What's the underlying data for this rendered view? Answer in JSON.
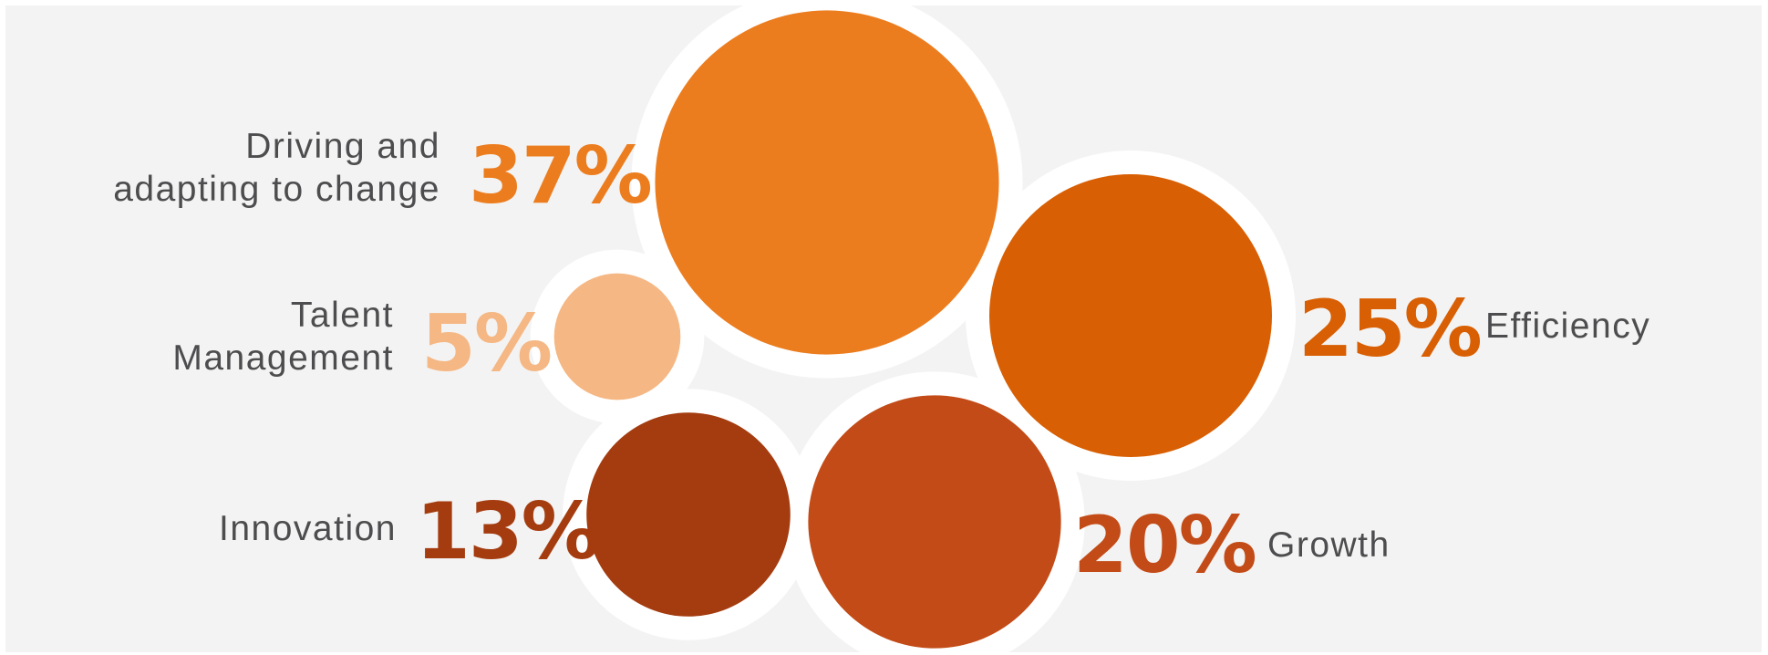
{
  "chart_data": {
    "type": "bubble",
    "unit": "%",
    "series": [
      {
        "category": "Driving and\nadapting to change",
        "value": 37,
        "label": "37%",
        "color": "#ec7d1f"
      },
      {
        "category": "Efficiency",
        "value": 25,
        "label": "25%",
        "color": "#d85f03"
      },
      {
        "category": "Talent\nManagement",
        "value": 5,
        "label": "5%",
        "color": "#f5b783"
      },
      {
        "category": "Innovation",
        "value": 13,
        "label": "13%",
        "color": "#a43c10"
      },
      {
        "category": "Growth",
        "value": 20,
        "label": "20%",
        "color": "#c34b17"
      }
    ]
  },
  "colors": {
    "background": "#f3f3f3",
    "bubble_outline": "#ffffff",
    "label_text": "#4d4d4f"
  }
}
